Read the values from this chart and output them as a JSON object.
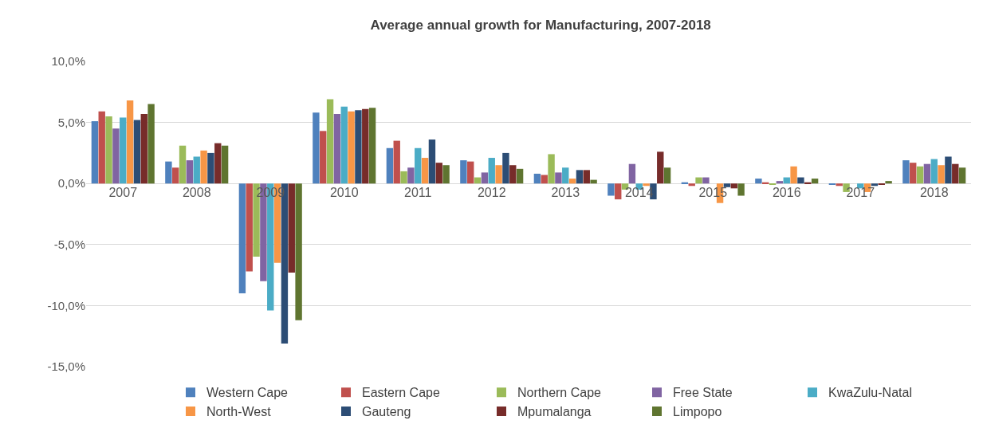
{
  "chart_data": {
    "type": "bar",
    "title": "Average annual growth for Manufacturing, 2007-2018",
    "categories": [
      "2007",
      "2008",
      "2009",
      "2010",
      "2011",
      "2012",
      "2013",
      "2014",
      "2015",
      "2016",
      "2017",
      "2018"
    ],
    "series": [
      {
        "name": "Western Cape",
        "color": "#4f81bd",
        "values": [
          5.1,
          1.8,
          -9.0,
          5.8,
          2.9,
          1.9,
          0.8,
          -1.0,
          0.1,
          0.4,
          -0.1,
          1.9
        ]
      },
      {
        "name": "Eastern Cape",
        "color": "#c0504d",
        "values": [
          5.9,
          1.3,
          -7.2,
          4.3,
          3.5,
          1.8,
          0.7,
          -1.3,
          -0.2,
          0.1,
          -0.2,
          1.7
        ]
      },
      {
        "name": "Northern Cape",
        "color": "#9bbb59",
        "values": [
          5.5,
          3.1,
          -6.0,
          6.9,
          1.0,
          0.5,
          2.4,
          -0.5,
          0.5,
          -0.1,
          -0.7,
          1.4
        ]
      },
      {
        "name": "Free State",
        "color": "#8064a2",
        "values": [
          4.5,
          1.9,
          -8.0,
          5.7,
          1.3,
          0.9,
          0.9,
          1.6,
          0.5,
          0.2,
          0.0,
          1.6
        ]
      },
      {
        "name": "KwaZulu-Natal",
        "color": "#4bacc6",
        "values": [
          5.4,
          2.2,
          -10.4,
          6.3,
          2.9,
          2.1,
          1.3,
          -0.5,
          0.0,
          0.5,
          -0.4,
          2.0
        ]
      },
      {
        "name": "North-West",
        "color": "#f79646",
        "values": [
          6.8,
          2.7,
          -6.5,
          5.9,
          2.1,
          1.5,
          0.4,
          -0.2,
          -1.6,
          1.4,
          -0.7,
          1.5
        ]
      },
      {
        "name": "Gauteng",
        "color": "#2c4d75",
        "values": [
          5.2,
          2.5,
          -13.1,
          6.0,
          3.6,
          2.5,
          1.1,
          -1.3,
          -0.3,
          0.5,
          -0.2,
          2.2
        ]
      },
      {
        "name": "Mpumalanga",
        "color": "#772c2a",
        "values": [
          5.7,
          3.3,
          -7.3,
          6.1,
          1.7,
          1.5,
          1.1,
          2.6,
          -0.4,
          0.1,
          -0.1,
          1.6
        ]
      },
      {
        "name": "Limpopo",
        "color": "#5f7530",
        "values": [
          6.5,
          3.1,
          -11.2,
          6.2,
          1.5,
          1.2,
          0.3,
          1.3,
          -1.0,
          0.4,
          0.2,
          1.3
        ]
      }
    ],
    "ylim": [
      -15,
      10
    ],
    "yticks": [
      {
        "value": -15,
        "label": "-15,0%"
      },
      {
        "value": -10,
        "label": "-10,0%"
      },
      {
        "value": -5,
        "label": "-5,0%"
      },
      {
        "value": 0,
        "label": "0,0%"
      },
      {
        "value": 5,
        "label": "5,0%"
      },
      {
        "value": 10,
        "label": "10,0%"
      }
    ],
    "grid": "y",
    "legend": "bottom"
  }
}
